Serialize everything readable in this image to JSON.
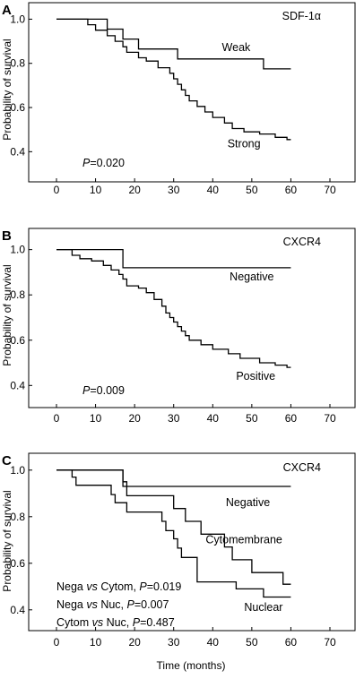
{
  "figure": {
    "x_axis_label": "Time (months)",
    "y_axis_label": "Probability of survival"
  },
  "chart_data": [
    {
      "type": "line",
      "panel": "A",
      "marker_label": "SDF-1α",
      "xlabel": "",
      "ylabel": "Probability of survival",
      "xlim": [
        0,
        70
      ],
      "ylim": [
        0.3,
        1.03
      ],
      "xticks": [
        "0",
        "10",
        "20",
        "30",
        "40",
        "50",
        "60",
        "70"
      ],
      "yticks": [
        "0.4",
        "0.6",
        "0.8",
        "1.0"
      ],
      "series": [
        {
          "name": "Weak",
          "step": true,
          "x": [
            0,
            13,
            13,
            17,
            17,
            21,
            21,
            31,
            31,
            53,
            53,
            60
          ],
          "y": [
            1.0,
            1.0,
            0.955,
            0.955,
            0.91,
            0.91,
            0.865,
            0.865,
            0.82,
            0.82,
            0.775,
            0.775
          ]
        },
        {
          "name": "Strong",
          "step": true,
          "x": [
            0,
            8,
            8,
            10,
            10,
            13,
            13,
            15,
            15,
            17,
            17,
            18,
            18,
            21,
            21,
            23,
            23,
            26,
            26,
            29,
            29,
            30,
            30,
            31,
            31,
            32,
            32,
            33,
            33,
            34,
            34,
            36,
            36,
            38,
            38,
            40,
            40,
            43,
            43,
            45,
            45,
            48,
            48,
            52,
            52,
            56,
            56,
            59,
            59,
            60
          ],
          "y": [
            1.0,
            1.0,
            0.975,
            0.975,
            0.95,
            0.95,
            0.925,
            0.925,
            0.9,
            0.9,
            0.875,
            0.875,
            0.85,
            0.85,
            0.825,
            0.825,
            0.81,
            0.81,
            0.78,
            0.78,
            0.755,
            0.755,
            0.73,
            0.73,
            0.705,
            0.705,
            0.68,
            0.68,
            0.655,
            0.655,
            0.63,
            0.63,
            0.605,
            0.605,
            0.58,
            0.58,
            0.555,
            0.555,
            0.53,
            0.53,
            0.505,
            0.505,
            0.49,
            0.49,
            0.48,
            0.48,
            0.465,
            0.465,
            0.455,
            0.455
          ]
        }
      ],
      "annotations": [
        {
          "text": "Weak",
          "x": 46,
          "y": 0.855
        },
        {
          "text": "Strong",
          "x": 48,
          "y": 0.42
        }
      ],
      "pvalue": {
        "prefix": "P",
        "text": "=0.020"
      }
    },
    {
      "type": "line",
      "panel": "B",
      "marker_label": "CXCR4",
      "xlabel": "",
      "ylabel": "Probability of survival",
      "xlim": [
        0,
        70
      ],
      "ylim": [
        0.33,
        1.05
      ],
      "xticks": [
        "0",
        "10",
        "20",
        "30",
        "40",
        "50",
        "60",
        "70"
      ],
      "yticks": [
        "0.4",
        "0.6",
        "0.8",
        "1.0"
      ],
      "series": [
        {
          "name": "Negative",
          "step": true,
          "x": [
            0,
            17,
            17,
            60
          ],
          "y": [
            1.0,
            1.0,
            0.92,
            0.92
          ]
        },
        {
          "name": "Positive",
          "step": true,
          "x": [
            0,
            4,
            4,
            6,
            6,
            9,
            9,
            12,
            12,
            14,
            14,
            16,
            16,
            17,
            17,
            18,
            18,
            21,
            21,
            23,
            23,
            25,
            25,
            27,
            27,
            28,
            28,
            29,
            29,
            30,
            30,
            31,
            31,
            32,
            32,
            33,
            33,
            34,
            34,
            37,
            37,
            40,
            40,
            44,
            44,
            47,
            47,
            52,
            52,
            56,
            56,
            59,
            59,
            60
          ],
          "y": [
            1.0,
            1.0,
            0.975,
            0.975,
            0.96,
            0.96,
            0.95,
            0.95,
            0.93,
            0.93,
            0.91,
            0.91,
            0.89,
            0.89,
            0.87,
            0.87,
            0.84,
            0.84,
            0.83,
            0.83,
            0.81,
            0.81,
            0.78,
            0.78,
            0.75,
            0.75,
            0.72,
            0.72,
            0.7,
            0.7,
            0.68,
            0.68,
            0.66,
            0.66,
            0.64,
            0.64,
            0.62,
            0.62,
            0.6,
            0.6,
            0.58,
            0.58,
            0.56,
            0.56,
            0.54,
            0.54,
            0.52,
            0.52,
            0.5,
            0.5,
            0.49,
            0.49,
            0.48,
            0.48
          ]
        }
      ],
      "annotations": [
        {
          "text": "Negative",
          "x": 50,
          "y": 0.865
        },
        {
          "text": "Positive",
          "x": 51,
          "y": 0.425
        }
      ],
      "pvalue": {
        "prefix": "P",
        "text": "=0.009"
      }
    },
    {
      "type": "line",
      "panel": "C",
      "marker_label": "CXCR4",
      "xlabel": "Time (months)",
      "ylabel": "Probability of survival",
      "xlim": [
        0,
        70
      ],
      "ylim": [
        0.33,
        1.03
      ],
      "xticks": [
        "0",
        "10",
        "20",
        "30",
        "40",
        "50",
        "60",
        "70"
      ],
      "yticks": [
        "0.4",
        "0.6",
        "0.8",
        "1.0"
      ],
      "series": [
        {
          "name": "Negative",
          "step": true,
          "x": [
            0,
            17,
            17,
            60
          ],
          "y": [
            1.0,
            1.0,
            0.93,
            0.93
          ]
        },
        {
          "name": "Cytomembrane",
          "step": true,
          "x": [
            0,
            17,
            17,
            18,
            18,
            30,
            30,
            33,
            33,
            37,
            37,
            43,
            43,
            45,
            45,
            50,
            50,
            58,
            58,
            60
          ],
          "y": [
            1.0,
            1.0,
            0.95,
            0.95,
            0.89,
            0.89,
            0.835,
            0.835,
            0.78,
            0.78,
            0.725,
            0.725,
            0.67,
            0.67,
            0.615,
            0.615,
            0.56,
            0.56,
            0.51,
            0.51
          ]
        },
        {
          "name": "Nuclear",
          "step": true,
          "x": [
            0,
            4,
            4,
            5,
            5,
            14,
            14,
            15,
            15,
            18,
            18,
            27,
            27,
            28,
            28,
            30,
            30,
            31,
            31,
            32,
            32,
            36,
            36,
            46,
            46,
            53,
            53,
            60
          ],
          "y": [
            1.0,
            1.0,
            0.97,
            0.97,
            0.935,
            0.935,
            0.895,
            0.895,
            0.86,
            0.86,
            0.82,
            0.82,
            0.78,
            0.78,
            0.74,
            0.74,
            0.705,
            0.705,
            0.665,
            0.665,
            0.625,
            0.625,
            0.52,
            0.52,
            0.49,
            0.49,
            0.455,
            0.455
          ]
        }
      ],
      "annotations": [
        {
          "text": "Negative",
          "x": 49,
          "y": 0.845
        },
        {
          "text": "Cytomembrane",
          "x": 48,
          "y": 0.685
        },
        {
          "text": "Nuclear",
          "x": 53,
          "y": 0.395
        }
      ],
      "pvalues": [
        {
          "a": "Nega",
          "vs": "vs",
          "b": "Cytom,",
          "p": "P",
          "val": "=0.019"
        },
        {
          "a": "Nega",
          "vs": "vs",
          "b": "Nuc,",
          "p": "P",
          "val": "=0.007"
        },
        {
          "a": "Cytom",
          "vs": "vs",
          "b": "Nuc,",
          "p": "P",
          "val": "=0.487"
        }
      ]
    }
  ]
}
